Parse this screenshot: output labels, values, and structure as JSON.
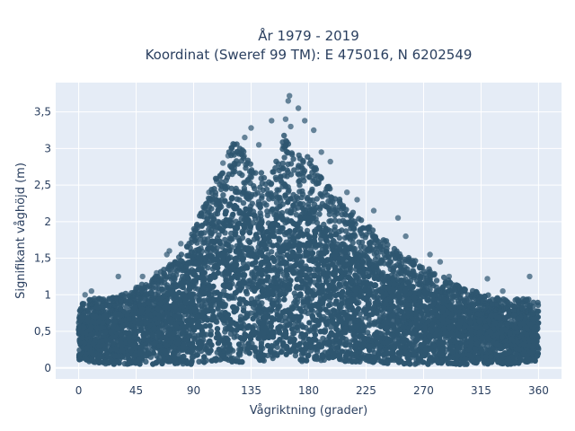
{
  "chart_data": {
    "type": "scatter",
    "title": "År 1979 - 2019",
    "subtitle": "Koordinat (Sweref 99 TM): E 475016, N 6202549",
    "xlabel": "Vågriktning (grader)",
    "ylabel": "Signifikant våghöjd (m)",
    "xlim": [
      -18,
      378
    ],
    "ylim": [
      -0.15,
      3.9
    ],
    "x_ticks": [
      0,
      45,
      90,
      135,
      180,
      225,
      270,
      315,
      360
    ],
    "x_tick_labels": [
      "0",
      "45",
      "90",
      "135",
      "180",
      "225",
      "270",
      "315",
      "360"
    ],
    "y_ticks": [
      0,
      0.5,
      1,
      1.5,
      2,
      2.5,
      3,
      3.5
    ],
    "y_tick_labels": [
      "0",
      "0,5",
      "1",
      "1,5",
      "2",
      "2,5",
      "3",
      "3,5"
    ],
    "grid": true,
    "legend": "none",
    "marker_color": "#2e5670",
    "background_color": "#e5ecf6",
    "envelope": {
      "x": [
        0,
        10,
        20,
        30,
        40,
        50,
        60,
        70,
        80,
        90,
        100,
        110,
        120,
        130,
        140,
        150,
        160,
        170,
        180,
        190,
        200,
        210,
        220,
        230,
        240,
        250,
        260,
        270,
        280,
        290,
        300,
        310,
        320,
        330,
        340,
        350,
        360
      ],
      "y_max": [
        0.9,
        0.95,
        0.95,
        1.0,
        1.05,
        1.15,
        1.25,
        1.4,
        1.55,
        1.9,
        2.3,
        2.7,
        3.1,
        3.0,
        2.7,
        2.6,
        3.2,
        3.0,
        2.9,
        2.6,
        2.4,
        2.2,
        2.05,
        1.9,
        1.75,
        1.6,
        1.5,
        1.4,
        1.3,
        1.2,
        1.1,
        1.05,
        1.0,
        0.95,
        0.95,
        0.95,
        0.9
      ],
      "y_min": [
        0.1,
        0.08,
        0.05,
        0.05,
        0.05,
        0.05,
        0.05,
        0.05,
        0.05,
        0.05,
        0.08,
        0.08,
        0.08,
        0.08,
        0.08,
        0.08,
        0.08,
        0.08,
        0.08,
        0.08,
        0.08,
        0.08,
        0.08,
        0.08,
        0.05,
        0.05,
        0.05,
        0.05,
        0.05,
        0.05,
        0.05,
        0.05,
        0.05,
        0.05,
        0.05,
        0.08,
        0.1
      ]
    },
    "outliers": [
      {
        "x": 165,
        "y": 3.72
      },
      {
        "x": 164,
        "y": 3.65
      },
      {
        "x": 172,
        "y": 3.55
      },
      {
        "x": 162,
        "y": 3.4
      },
      {
        "x": 151,
        "y": 3.38
      },
      {
        "x": 177,
        "y": 3.38
      },
      {
        "x": 166,
        "y": 3.3
      },
      {
        "x": 135,
        "y": 3.28
      },
      {
        "x": 130,
        "y": 3.15
      },
      {
        "x": 141,
        "y": 3.05
      },
      {
        "x": 184,
        "y": 3.25
      },
      {
        "x": 190,
        "y": 2.95
      },
      {
        "x": 197,
        "y": 2.82
      },
      {
        "x": 210,
        "y": 2.4
      },
      {
        "x": 218,
        "y": 2.3
      },
      {
        "x": 231,
        "y": 2.15
      },
      {
        "x": 250,
        "y": 2.05
      },
      {
        "x": 256,
        "y": 1.8
      },
      {
        "x": 275,
        "y": 1.55
      },
      {
        "x": 283,
        "y": 1.45
      },
      {
        "x": 290,
        "y": 1.25
      },
      {
        "x": 320,
        "y": 1.22
      },
      {
        "x": 332,
        "y": 1.05
      },
      {
        "x": 353,
        "y": 1.25
      },
      {
        "x": 69,
        "y": 1.55
      },
      {
        "x": 71,
        "y": 1.6
      },
      {
        "x": 80,
        "y": 1.7
      },
      {
        "x": 61,
        "y": 1.3
      },
      {
        "x": 50,
        "y": 1.25
      },
      {
        "x": 31,
        "y": 1.25
      },
      {
        "x": 10,
        "y": 1.05
      },
      {
        "x": 5,
        "y": 1.0
      },
      {
        "x": 45,
        "y": 1.1
      },
      {
        "x": 102,
        "y": 2.4
      },
      {
        "x": 108,
        "y": 2.55
      },
      {
        "x": 113,
        "y": 2.8
      },
      {
        "x": 117,
        "y": 2.9
      }
    ]
  }
}
